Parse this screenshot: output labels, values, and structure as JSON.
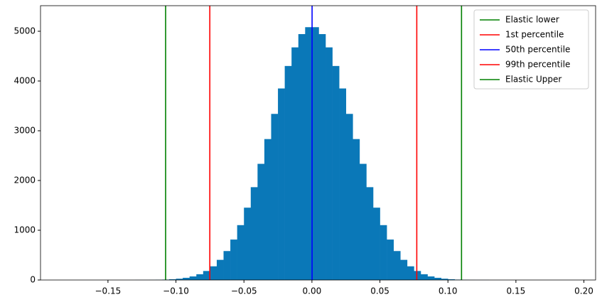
{
  "chart_data": {
    "type": "histogram",
    "bins": [
      -0.18,
      -0.175,
      -0.17,
      -0.165,
      -0.16,
      -0.155,
      -0.15,
      -0.145,
      -0.14,
      -0.135,
      -0.13,
      -0.125,
      -0.12,
      -0.115,
      -0.11,
      -0.105,
      -0.1,
      -0.095,
      -0.09,
      -0.085,
      -0.08,
      -0.075,
      -0.07,
      -0.065,
      -0.06,
      -0.055,
      -0.05,
      -0.045,
      -0.04,
      -0.035,
      -0.03,
      -0.025,
      -0.02,
      -0.015,
      -0.01,
      -0.005,
      0,
      0.005,
      0.01,
      0.015,
      0.02,
      0.025,
      0.03,
      0.035,
      0.04,
      0.045,
      0.05,
      0.055,
      0.06,
      0.065,
      0.07,
      0.075,
      0.08,
      0.085,
      0.09,
      0.095,
      0.1,
      0.105,
      0.11,
      0.115,
      0.12,
      0.125,
      0.13,
      0.135,
      0.14,
      0.145,
      0.15,
      0.155,
      0.16,
      0.165,
      0.17,
      0.175,
      0.18,
      0.185,
      0.19
    ],
    "counts": [
      0,
      0,
      0,
      0,
      0,
      0,
      0,
      0,
      0,
      0,
      1,
      1,
      2,
      4,
      8,
      15,
      26,
      44,
      72,
      116,
      181,
      275,
      405,
      582,
      813,
      1103,
      1454,
      1866,
      2335,
      2833,
      3339,
      3850,
      4302,
      4676,
      4943,
      5082,
      5082,
      4943,
      4676,
      4302,
      3850,
      3339,
      2833,
      2335,
      1866,
      1454,
      1103,
      813,
      582,
      405,
      275,
      181,
      116,
      72,
      44,
      26,
      15,
      8,
      4,
      2,
      1,
      1,
      0,
      0,
      0,
      0,
      0,
      0,
      0,
      0,
      0,
      0,
      0,
      0
    ],
    "color": "#0a78b8",
    "lines": [
      {
        "name": "Elastic lower",
        "color": "#008000",
        "x": -0.1076
      },
      {
        "name": "1st percentile",
        "color": "#ff0000",
        "x": -0.0751
      },
      {
        "name": "50th percentile",
        "color": "#0000ff",
        "x": 0.0001
      },
      {
        "name": "99th percentile",
        "color": "#ff0000",
        "x": 0.0771
      },
      {
        "name": "Elastic Upper",
        "color": "#008000",
        "x": 0.11
      }
    ],
    "xlim": [
      -0.1996,
      0.2086
    ],
    "ylim": [
      0,
      5514
    ],
    "xticks": [
      {
        "value": -0.15,
        "label": "−0.15"
      },
      {
        "value": -0.1,
        "label": "−0.10"
      },
      {
        "value": -0.05,
        "label": "−0.05"
      },
      {
        "value": 0,
        "label": "0.00"
      },
      0.05,
      {
        "value": 0.1,
        "label": "0.10"
      },
      0.15,
      {
        "value": 0.2,
        "label": "0.20"
      }
    ],
    "yticks": [
      0,
      1000,
      2000,
      3000,
      4000,
      5000
    ],
    "legend": "upper right"
  }
}
